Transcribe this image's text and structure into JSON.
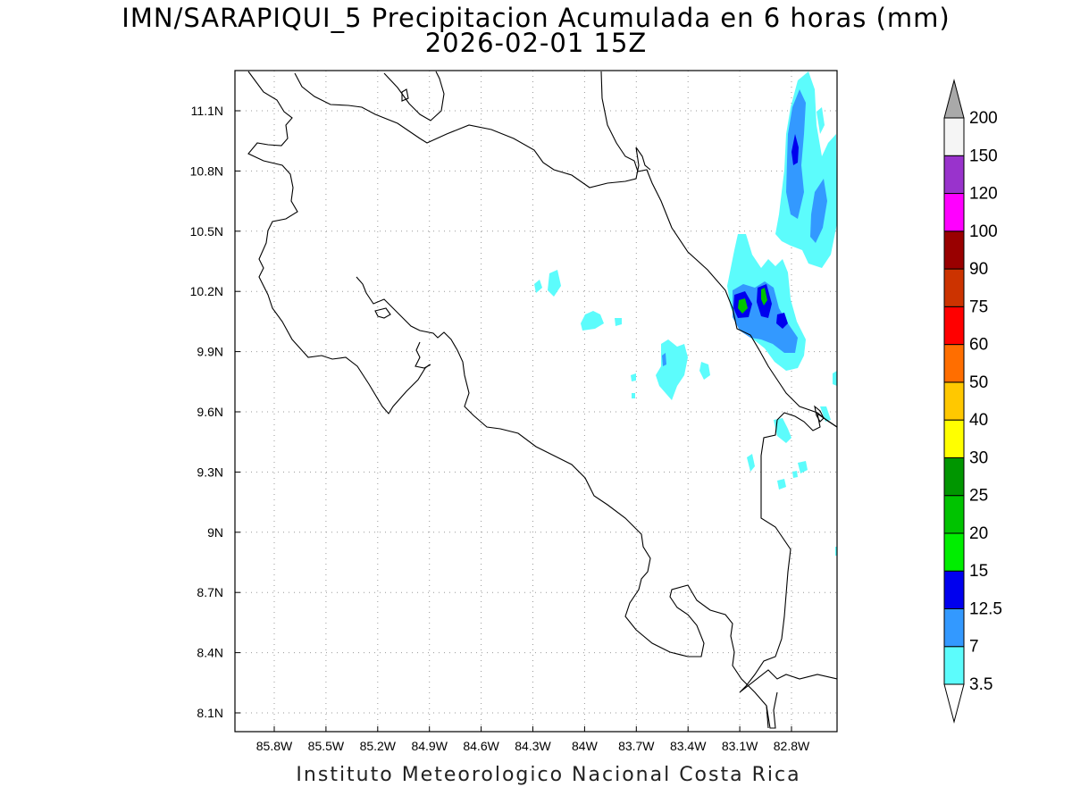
{
  "title": {
    "line1": "IMN/SARAPIQUI_5 Precipitacion Acumulada en 6 horas (mm)",
    "line2": "2026-02-01 15Z"
  },
  "footer": "Instituto Meteorologico Nacional Costa Rica",
  "map": {
    "lon_ticks": [
      {
        "value": -85.8,
        "label": "85.8W"
      },
      {
        "value": -85.5,
        "label": "85.5W"
      },
      {
        "value": -85.2,
        "label": "85.2W"
      },
      {
        "value": -84.9,
        "label": "84.9W"
      },
      {
        "value": -84.6,
        "label": "84.6W"
      },
      {
        "value": -84.3,
        "label": "84.3W"
      },
      {
        "value": -84.0,
        "label": "84W"
      },
      {
        "value": -83.7,
        "label": "83.7W"
      },
      {
        "value": -83.4,
        "label": "83.4W"
      },
      {
        "value": -83.1,
        "label": "83.1W"
      },
      {
        "value": -82.8,
        "label": "82.8W"
      }
    ],
    "lat_ticks": [
      {
        "value": 11.1,
        "label": "11.1N"
      },
      {
        "value": 10.8,
        "label": "10.8N"
      },
      {
        "value": 10.5,
        "label": "10.5N"
      },
      {
        "value": 10.2,
        "label": "10.2N"
      },
      {
        "value": 9.9,
        "label": "9.9N"
      },
      {
        "value": 9.6,
        "label": "9.6N"
      },
      {
        "value": 9.3,
        "label": "9.3N"
      },
      {
        "value": 9.0,
        "label": "9N"
      },
      {
        "value": 8.7,
        "label": "8.7N"
      },
      {
        "value": 8.4,
        "label": "8.4N"
      },
      {
        "value": 8.1,
        "label": "8.1N"
      }
    ],
    "gridlines": true
  },
  "legend": {
    "levels": [
      "3.5",
      "7",
      "12.5",
      "15",
      "20",
      "25",
      "30",
      "40",
      "50",
      "60",
      "75",
      "90",
      "100",
      "120",
      "150",
      "200"
    ],
    "colors": [
      "#5cfcfc",
      "#3399ff",
      "#0000ee",
      "#00ee00",
      "#00c300",
      "#009600",
      "#ffff00",
      "#ffc800",
      "#ff6e00",
      "#ff0000",
      "#cc3300",
      "#990000",
      "#ff00ff",
      "#9933cc",
      "#f5f5f5"
    ],
    "over_color": "#a9a9a9",
    "under_color": "#ffffff"
  }
}
